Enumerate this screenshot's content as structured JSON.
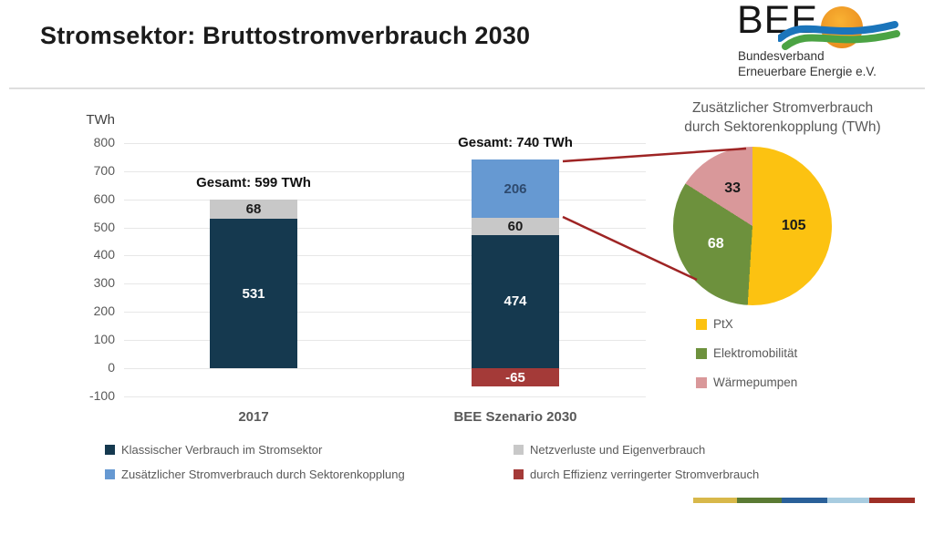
{
  "page": {
    "title": "Stromsektor: Bruttostromverbrauch 2030"
  },
  "logo": {
    "acronym": "BEE",
    "org_line1": "Bundesverband",
    "org_line2": "Erneuerbare Energie e.V."
  },
  "chart_data": [
    {
      "type": "bar",
      "stacked": true,
      "unit": "TWh",
      "ylabel": "TWh",
      "ylim": [
        -100,
        800
      ],
      "grid": true,
      "y_ticks": [
        800,
        700,
        600,
        500,
        400,
        300,
        200,
        100,
        0,
        -100
      ],
      "categories": [
        "2017",
        "BEE Szenario 2030"
      ],
      "bars": [
        {
          "category": "2017",
          "total": 599,
          "total_label": "Gesamt: 599 TWh",
          "segments": [
            {
              "name": "Netzverluste und Eigenverbrauch",
              "value": 68,
              "color": "#c8c8c8",
              "label_color": "#1a1a1a"
            },
            {
              "name": "Klassischer Verbrauch im Stromsektor",
              "value": 531,
              "color": "#15394f",
              "label_color": "#ffffff"
            }
          ]
        },
        {
          "category": "BEE Szenario 2030",
          "total": 740,
          "total_label": "Gesamt: 740 TWh",
          "segments": [
            {
              "name": "Zusätzlicher Stromverbrauch durch Sektorenkopplung",
              "value": 206,
              "color": "#6699d2",
              "label_color": "#2e4a6e"
            },
            {
              "name": "Netzverluste und Eigenverbrauch",
              "value": 60,
              "color": "#c8c8c8",
              "label_color": "#1a1a1a"
            },
            {
              "name": "Klassischer Verbrauch im Stromsektor",
              "value": 474,
              "color": "#15394f",
              "label_color": "#ffffff"
            },
            {
              "name": "durch Effizienz verringerter Stromverbrauch",
              "value": -65,
              "color": "#a43a38",
              "label_color": "#ffffff"
            }
          ]
        }
      ],
      "legend": [
        {
          "label": "Klassischer Verbrauch im Stromsektor",
          "color": "#15394f"
        },
        {
          "label": "Netzverluste und Eigenverbrauch",
          "color": "#c8c8c8"
        },
        {
          "label": "Zusätzlicher Stromverbrauch durch Sektorenkopplung",
          "color": "#6699d2"
        },
        {
          "label": "durch Effizienz verringerter Stromverbrauch",
          "color": "#a43a38"
        }
      ]
    },
    {
      "type": "pie",
      "title": "Zusätzlicher Stromverbrauch durch Sektorenkopplung (TWh)",
      "title_line1": "Zusätzlicher Stromverbrauch",
      "title_line2": "durch Sektorenkopplung (TWh)",
      "start_angle_deg": 0,
      "direction": "clockwise",
      "total": 206,
      "slices": [
        {
          "label": "PtX",
          "value": 105,
          "color": "#fcc211",
          "label_color": "#1a1a1a"
        },
        {
          "label": "Elektromobilität",
          "value": 68,
          "color": "#6d913d",
          "label_color": "#ffffff"
        },
        {
          "label": "Wärmepumpen",
          "value": 33,
          "color": "#d9989a",
          "label_color": "#1a1a1a"
        }
      ],
      "legend_position": "below"
    }
  ],
  "callout": {
    "line_color": "#9e2424"
  },
  "footer_stripe_colors": [
    "#d8b84a",
    "#5a7a33",
    "#2a6099",
    "#a8cce0",
    "#9e2f26"
  ]
}
